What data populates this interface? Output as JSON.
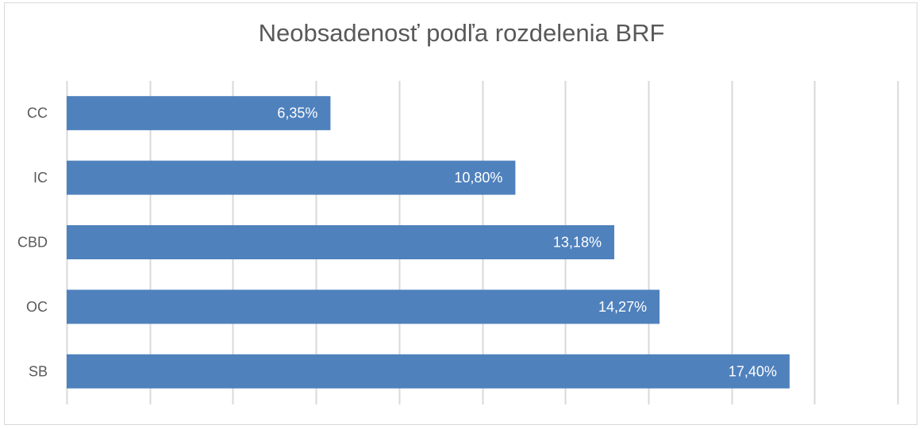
{
  "chart_data": {
    "type": "bar",
    "orientation": "horizontal",
    "title": "Neobsadenosť podľa rozdelenia BRF",
    "categories": [
      "CC",
      "IC",
      "CBD",
      "OC",
      "SB"
    ],
    "values": [
      6.35,
      10.8,
      13.18,
      14.27,
      17.4
    ],
    "data_labels": [
      "6,35%",
      "10,80%",
      "13,18%",
      "14,27%",
      "17,40%"
    ],
    "unit": "%",
    "xlim": [
      0,
      20
    ],
    "x_gridline_step": 2,
    "grid": true,
    "x_tick_labels_visible": false,
    "legend": "none",
    "bar_color": "#4f81bd",
    "gridline_color": "#d9d9d9"
  }
}
